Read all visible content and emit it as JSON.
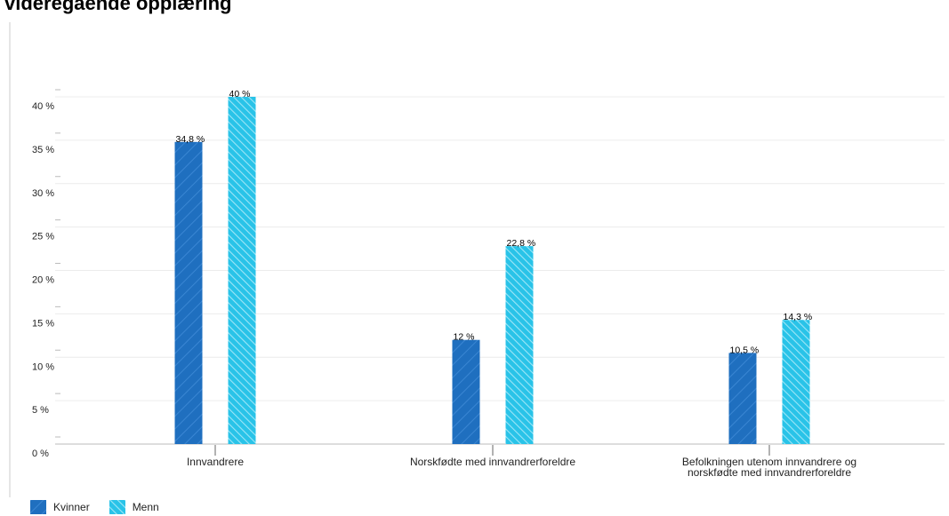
{
  "title": "videregående opplæring",
  "chart_data": {
    "type": "bar",
    "categories": [
      [
        "Innvandrere"
      ],
      [
        "Norskfødte med innvandrerforeldre"
      ],
      [
        "Befolkningen utenom innvandrere og",
        "norskfødte med innvandrerforeldre"
      ]
    ],
    "series": [
      {
        "name": "Kvinner",
        "values": [
          34.8,
          12,
          10.5
        ],
        "labels": [
          "34,8 %",
          "12 %",
          "10,5 %"
        ],
        "color": "#1f6fbf",
        "pattern": "hatch-forward"
      },
      {
        "name": "Menn",
        "values": [
          40,
          22.8,
          14.3
        ],
        "labels": [
          "40 %",
          "22,8 %",
          "14,3 %"
        ],
        "color": "#29c3e8",
        "pattern": "hatch-back"
      }
    ],
    "yticks": [
      0,
      5,
      10,
      15,
      20,
      25,
      30,
      35,
      40
    ],
    "ytick_labels": [
      "0 %",
      "5 %",
      "10 %",
      "15 %",
      "20 %",
      "25 %",
      "30 %",
      "35 %",
      "40 %"
    ],
    "ylim": [
      0,
      40
    ],
    "grid": true,
    "legend_position": "bottom-left"
  }
}
